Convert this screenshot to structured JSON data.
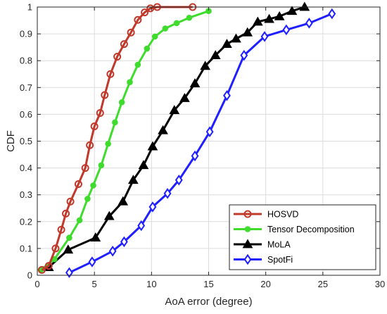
{
  "chart_data": {
    "type": "line",
    "xlabel": "AoA error (degree)",
    "ylabel": "CDF",
    "xlim": [
      0,
      30
    ],
    "ylim": [
      0,
      1
    ],
    "xticks": [
      0,
      5,
      10,
      15,
      20,
      25,
      30
    ],
    "yticks": [
      0,
      0.1,
      0.2,
      0.3,
      0.4,
      0.5,
      0.6,
      0.7,
      0.8,
      0.9,
      1
    ],
    "xtick_labels": [
      "0",
      "5",
      "10",
      "15",
      "20",
      "25",
      "30"
    ],
    "ytick_labels": [
      "0",
      "0.1",
      "0.2",
      "0.3",
      "0.4",
      "0.5",
      "0.6",
      "0.7",
      "0.8",
      "0.9",
      "1"
    ],
    "grid": true,
    "legend_position": "bottom-right",
    "series": [
      {
        "name": "HOSVD",
        "color": "#c0392b",
        "marker": "circle",
        "x": [
          0.4,
          1.0,
          1.6,
          2.1,
          2.5,
          2.9,
          3.6,
          4.2,
          4.6,
          5.0,
          5.5,
          5.9,
          6.4,
          7.0,
          7.6,
          8.2,
          8.8,
          9.4,
          9.9,
          10.5,
          13.6
        ],
        "y": [
          0.02,
          0.035,
          0.1,
          0.17,
          0.23,
          0.275,
          0.34,
          0.4,
          0.485,
          0.555,
          0.605,
          0.672,
          0.75,
          0.815,
          0.862,
          0.905,
          0.952,
          0.98,
          0.995,
          1.0,
          1.0
        ]
      },
      {
        "name": "Tensor Decomposition",
        "color": "#3fdc2e",
        "marker": "dot",
        "x": [
          0.3,
          1.5,
          2.8,
          3.7,
          4.4,
          4.9,
          5.6,
          6.2,
          6.8,
          7.4,
          8.1,
          8.8,
          9.6,
          10.3,
          11.2,
          12.2,
          13.3,
          15.0
        ],
        "y": [
          0.02,
          0.06,
          0.14,
          0.205,
          0.285,
          0.335,
          0.41,
          0.49,
          0.57,
          0.645,
          0.72,
          0.785,
          0.845,
          0.89,
          0.92,
          0.94,
          0.96,
          0.985
        ]
      },
      {
        "name": "MoLA",
        "color": "#000000",
        "marker": "triangle",
        "x": [
          1.0,
          2.7,
          5.1,
          6.3,
          7.5,
          8.4,
          9.3,
          10.1,
          11.0,
          12.0,
          12.9,
          13.8,
          14.7,
          15.6,
          16.6,
          17.4,
          18.4,
          19.3,
          20.3,
          21.2,
          22.3,
          23.4
        ],
        "y": [
          0.03,
          0.095,
          0.14,
          0.22,
          0.275,
          0.355,
          0.41,
          0.48,
          0.54,
          0.615,
          0.66,
          0.715,
          0.78,
          0.82,
          0.862,
          0.882,
          0.905,
          0.945,
          0.955,
          0.965,
          0.985,
          1.0
        ]
      },
      {
        "name": "SpotFi",
        "color": "#1f1fff",
        "marker": "diamond",
        "x": [
          2.8,
          4.8,
          6.6,
          7.6,
          9.1,
          10.1,
          11.4,
          12.4,
          13.8,
          15.1,
          16.6,
          18.1,
          19.9,
          21.8,
          23.8,
          25.8
        ],
        "y": [
          0.01,
          0.05,
          0.09,
          0.125,
          0.185,
          0.255,
          0.305,
          0.355,
          0.445,
          0.535,
          0.67,
          0.82,
          0.89,
          0.915,
          0.94,
          0.975
        ]
      }
    ]
  }
}
